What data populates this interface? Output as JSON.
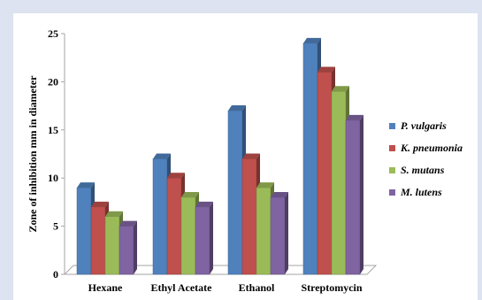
{
  "chart_data": {
    "type": "bar",
    "style": "3d-clustered-column",
    "categories": [
      "Hexane",
      "Ethyl Acetate",
      "Ethanol",
      "Streptomycin"
    ],
    "series": [
      {
        "name": "P. vulgaris",
        "color": "#4f81bd",
        "values": [
          9,
          12,
          17,
          24
        ]
      },
      {
        "name": "K. pneumonia",
        "color": "#c0504d",
        "values": [
          7,
          10,
          12,
          21
        ]
      },
      {
        "name": "S. mutans",
        "color": "#9bbb59",
        "values": [
          6,
          8,
          9,
          19
        ]
      },
      {
        "name": "M.  lutens",
        "color": "#8064a2",
        "values": [
          5,
          7,
          8,
          16
        ]
      }
    ],
    "ylabel": "Zone of inhibition mm in diameter",
    "ylim": [
      0,
      25
    ],
    "yticks": [
      "0",
      "5",
      "10",
      "15",
      "20",
      "25"
    ],
    "grid": false,
    "legend_position": "right"
  }
}
